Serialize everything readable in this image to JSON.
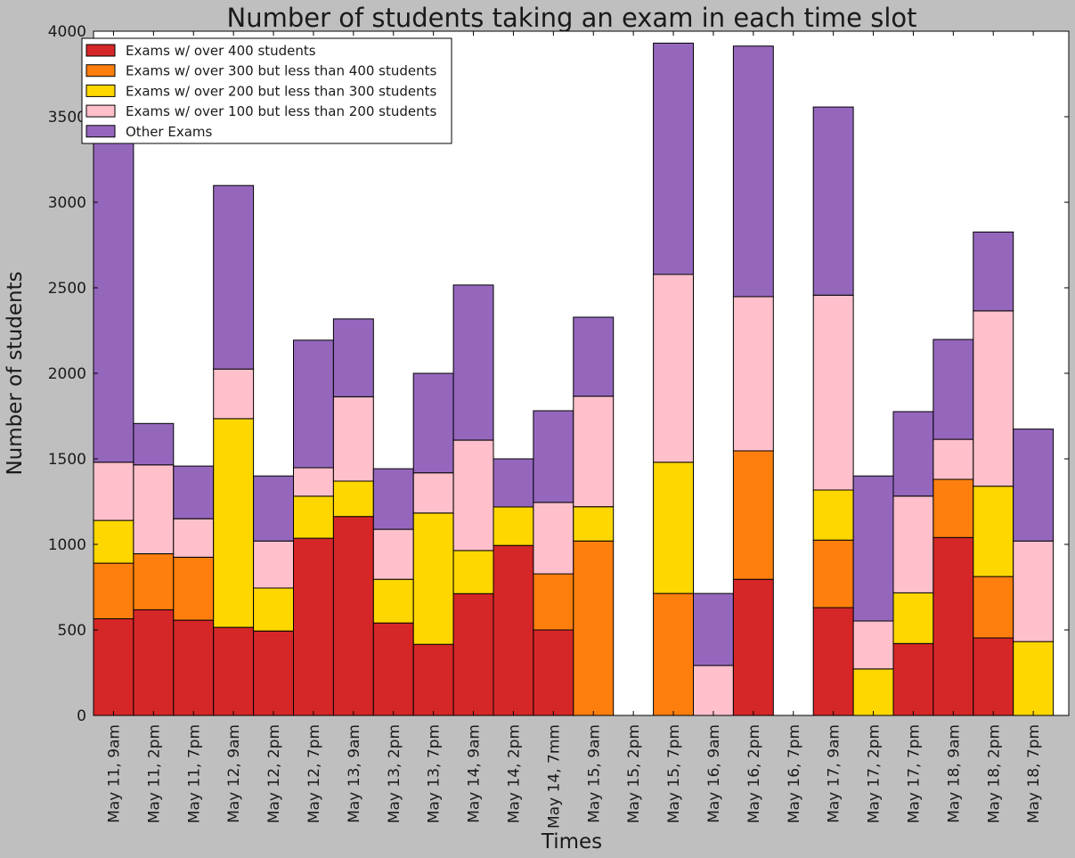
{
  "chart_data": {
    "type": "bar",
    "stacked": true,
    "title": "Number of students taking an exam in each time slot",
    "xlabel": "Times",
    "ylabel": "Number of students",
    "ylim": [
      0,
      4000
    ],
    "yticks": [
      0,
      500,
      1000,
      1500,
      2000,
      2500,
      3000,
      3500,
      4000
    ],
    "grid": false,
    "legend_position": "top-left",
    "categories": [
      "May 11, 9am",
      "May 11, 2pm",
      "May 11, 7pm",
      "May 12, 9am",
      "May 12, 2pm",
      "May 12, 7pm",
      "May 13, 9am",
      "May 13, 2pm",
      "May 13, 7pm",
      "May 14, 9am",
      "May 14, 2pm",
      "May 14, 7mm",
      "May 15, 9am",
      "May 15, 2pm",
      "May 15, 7pm",
      "May 16, 9am",
      "May 16, 2pm",
      "May 16, 7pm",
      "May 17, 9am",
      "May 17, 2pm",
      "May 17, 7pm",
      "May 18, 9am",
      "May 18, 2pm",
      "May 18, 7pm"
    ],
    "series": [
      {
        "name": "Exams w/ over 400 students",
        "color": "#d62728",
        "values": [
          565,
          618,
          557,
          515,
          494,
          1036,
          1163,
          541,
          416,
          712,
          994,
          500,
          0,
          0,
          0,
          0,
          796,
          0,
          630,
          0,
          420,
          1040,
          453,
          0
        ]
      },
      {
        "name": "Exams w/ over 300 but less than 400 students",
        "color": "#ff7f0e",
        "values": [
          325,
          327,
          368,
          0,
          0,
          0,
          0,
          0,
          0,
          0,
          0,
          328,
          1020,
          0,
          713,
          0,
          751,
          0,
          395,
          0,
          0,
          340,
          359,
          0
        ]
      },
      {
        "name": "Exams w/ over 200 but less than 300 students",
        "color": "#ffd700",
        "values": [
          250,
          0,
          0,
          1220,
          251,
          246,
          207,
          255,
          767,
          252,
          225,
          0,
          200,
          0,
          767,
          0,
          0,
          0,
          293,
          272,
          297,
          0,
          528,
          432
        ]
      },
      {
        "name": "Exams w/ over 100 but less than 200 students",
        "color": "#ffc0cb",
        "values": [
          340,
          520,
          225,
          290,
          275,
          166,
          493,
          292,
          235,
          645,
          0,
          417,
          646,
          0,
          1098,
          292,
          901,
          0,
          1139,
          280,
          565,
          234,
          1025,
          588
        ]
      },
      {
        "name": "Other Exams",
        "color": "#9467bd",
        "values": [
          2160,
          242,
          308,
          1073,
          380,
          746,
          455,
          354,
          582,
          907,
          281,
          536,
          462,
          0,
          1352,
          421,
          1465,
          0,
          1100,
          848,
          494,
          584,
          461,
          654
        ]
      }
    ]
  }
}
